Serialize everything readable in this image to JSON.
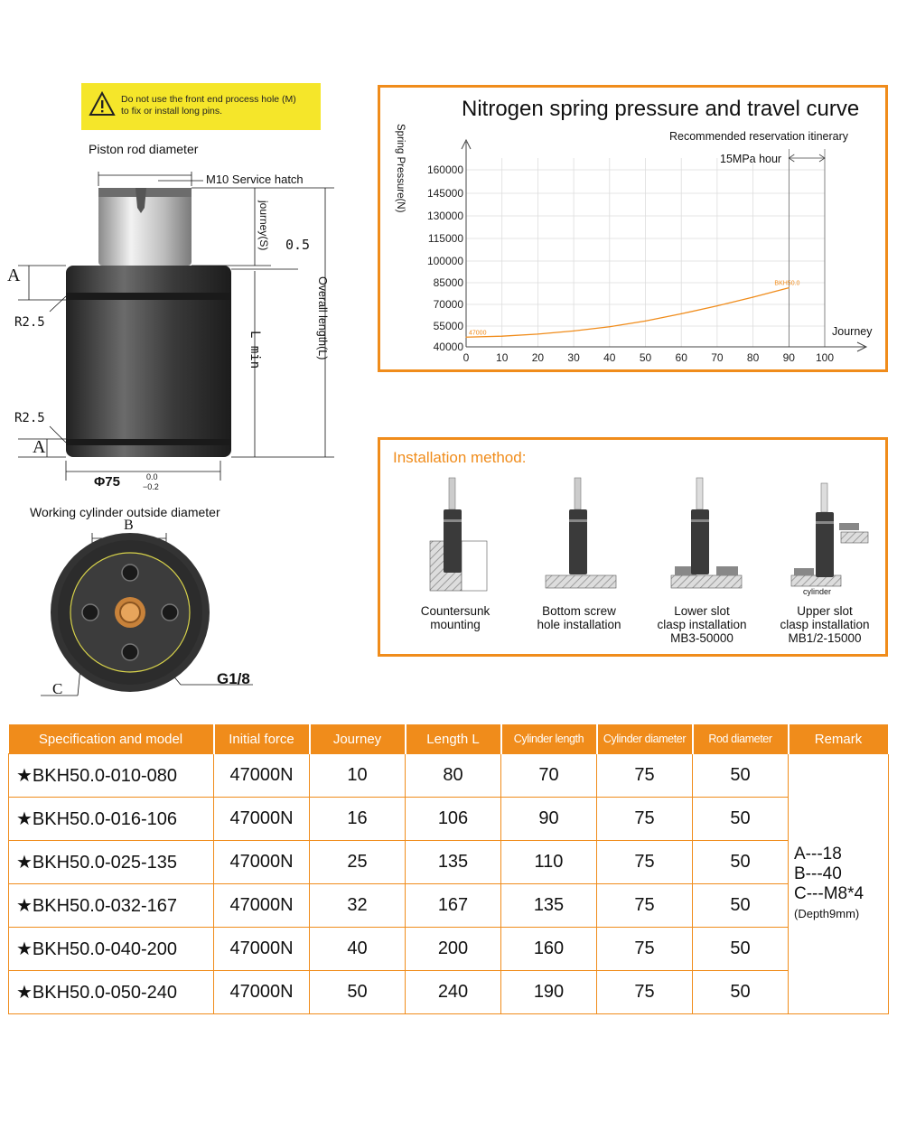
{
  "warning": {
    "text_line1": "Do not use the front end process hole (M)",
    "text_line2": "to fix or install long pins."
  },
  "drawing": {
    "piston_rod_diameter": "Piston rod diameter",
    "service_hatch": "M10 Service hatch",
    "journey_s": "journey(S)",
    "gap": "0.5",
    "label_a": "A",
    "r25": "R2.5",
    "lmin": "L min",
    "overall_length": "Overall length(L)",
    "phi": "Φ75",
    "tol_upper": "0.0",
    "tol_lower": "−0.2",
    "working_cyl": "Working cylinder outside diameter",
    "label_b": "B",
    "label_c": "C",
    "g18": "G1/8"
  },
  "chart": {
    "title": "Nitrogen spring pressure and travel curve",
    "reservation": "Recommended reservation itinerary",
    "mpa": "15MPa hour",
    "ylabel_1": "Spring",
    "ylabel_2": "Pressure(N)",
    "xlabel": "Journey",
    "start_label": "47000",
    "end_label": "BKH50.0"
  },
  "chart_data": {
    "type": "line",
    "title": "Nitrogen spring pressure and travel curve",
    "xlabel": "Journey",
    "ylabel": "Spring Pressure(N)",
    "xlim": [
      0,
      100
    ],
    "x_ticks": [
      0,
      10,
      20,
      30,
      40,
      50,
      60,
      70,
      80,
      90,
      100
    ],
    "y_ticks": [
      40000,
      55000,
      70000,
      85000,
      100000,
      115000,
      130000,
      145000,
      160000
    ],
    "grid": true,
    "series": [
      {
        "name": "BKH50.0",
        "x": [
          0,
          10,
          20,
          30,
          40,
          50,
          60,
          70,
          80,
          90
        ],
        "y": [
          47000,
          47700,
          49200,
          51500,
          54500,
          58500,
          63500,
          69000,
          75000,
          81500
        ]
      }
    ]
  },
  "install": {
    "title": "Installation method",
    "cap1": [
      "Countersunk",
      "mounting"
    ],
    "cap2": [
      "Bottom screw",
      "hole installation"
    ],
    "cap3": [
      "Lower slot",
      "clasp installation",
      "MB3-50000"
    ],
    "cap4": [
      "Upper slot",
      "clasp installation",
      "MB1/2-15000"
    ],
    "cylinder_note": "cylinder"
  },
  "table": {
    "headers": [
      "Specification and model",
      "Initial force",
      "Journey",
      "Length L",
      "Cylinder length",
      "Cylinder diameter",
      "Rod diameter",
      "Remark"
    ],
    "rows": [
      [
        "★BKH50.0-010-080",
        "47000N",
        "10",
        "80",
        "70",
        "75",
        "50"
      ],
      [
        "★BKH50.0-016-106",
        "47000N",
        "16",
        "106",
        "90",
        "75",
        "50"
      ],
      [
        "★BKH50.0-025-135",
        "47000N",
        "25",
        "135",
        "110",
        "75",
        "50"
      ],
      [
        "★BKH50.0-032-167",
        "47000N",
        "32",
        "167",
        "135",
        "75",
        "50"
      ],
      [
        "★BKH50.0-040-200",
        "47000N",
        "40",
        "200",
        "160",
        "75",
        "50"
      ],
      [
        "★BKH50.0-050-240",
        "47000N",
        "50",
        "240",
        "190",
        "75",
        "50"
      ]
    ],
    "remark": {
      "a": "A---18",
      "b": "B---40",
      "c": "C---M8*4",
      "depth": "(Depth9mm)"
    }
  },
  "colors": {
    "accent": "#f08c1b",
    "warning": "#f5e62a",
    "cylinder": "#3a3a3a"
  }
}
